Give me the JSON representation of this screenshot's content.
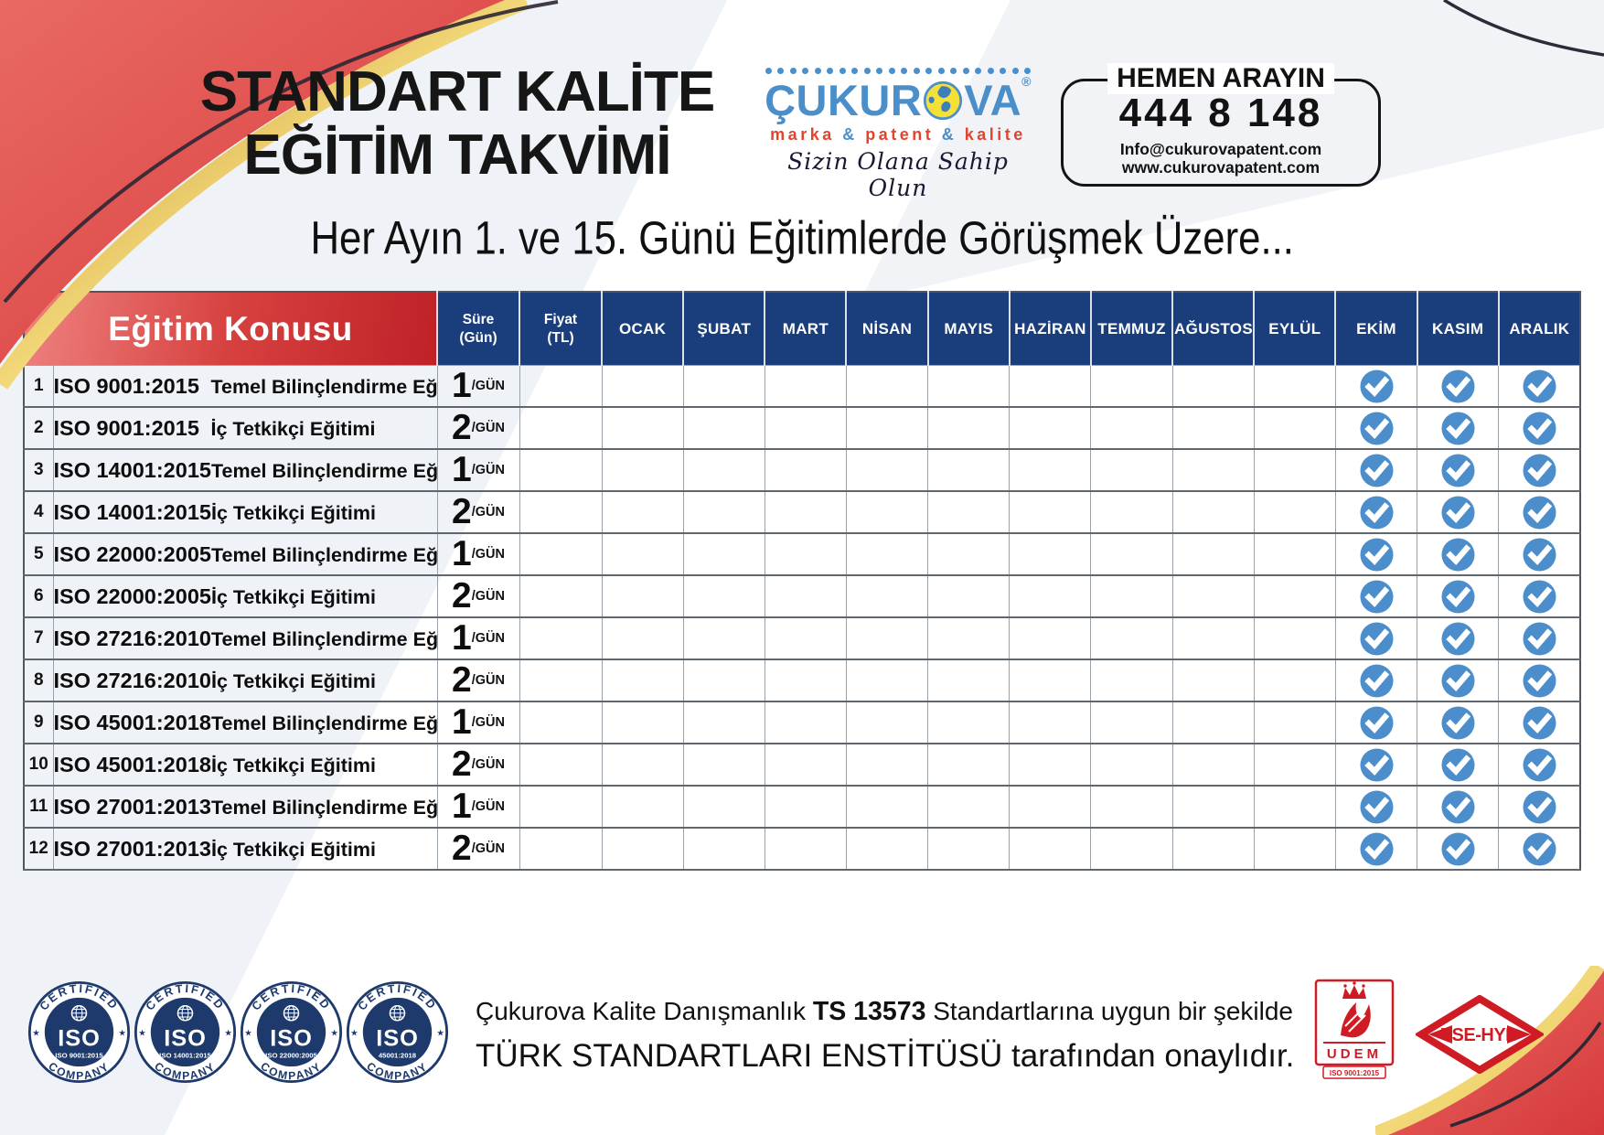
{
  "colors": {
    "accent_red": "#c5262c",
    "header_red_light": "#ee8280",
    "header_blue": "#1a3e7c",
    "check_blue": "#4b8ecb",
    "badge_navy": "#1e3a6d",
    "logo_blue": "#4a8fc9",
    "logo_red": "#e2442e",
    "globe_yellow": "#f5df39",
    "cert_red": "#cf1b24",
    "gold": "#d9a33b"
  },
  "header": {
    "title_line1": "STANDART KALİTE",
    "title_line2": "EĞİTİM TAKVİMİ",
    "logo": {
      "name_pre": "ÇUKUR",
      "name_post": "VA",
      "registered": "®",
      "tagline_parts": [
        "marka",
        "&",
        "patent",
        "&",
        "kalite"
      ],
      "script": "Sizin Olana Sahip Olun"
    },
    "contact": {
      "label": "HEMEN ARAYIN",
      "phone": "444 8 148",
      "email": "Info@cukurovapatent.com",
      "website": "www.cukurovapatent.com"
    },
    "subtitle": "Her Ayın 1. ve 15. Günü Eğitimlerde Görüşmek Üzere..."
  },
  "table": {
    "topic_header": "Eğitim Konusu",
    "sure_header": {
      "line1": "Süre",
      "line2": "(Gün)"
    },
    "fiyat_header": {
      "line1": "Fiyat",
      "line2": "(TL)"
    },
    "months": [
      "OCAK",
      "ŞUBAT",
      "MART",
      "NİSAN",
      "MAYIS",
      "HAZİRAN",
      "TEMMUZ",
      "AĞUSTOS",
      "EYLÜL",
      "EKİM",
      "KASIM",
      "ARALIK"
    ],
    "gun_suffix": "/GÜN",
    "rows": [
      {
        "no": "1",
        "standard": "ISO 9001:2015",
        "course": "Temel Bilinçlendirme Eğitimi",
        "days": "1",
        "price": "",
        "checked_months": [
          "EKİM",
          "KASIM",
          "ARALIK"
        ]
      },
      {
        "no": "2",
        "standard": "ISO 9001:2015",
        "course": "İç Tetkikçi Eğitimi",
        "days": "2",
        "price": "",
        "checked_months": [
          "EKİM",
          "KASIM",
          "ARALIK"
        ]
      },
      {
        "no": "3",
        "standard": "ISO 14001:2015",
        "course": "Temel Bilinçlendirme Eğitimi",
        "days": "1",
        "price": "",
        "checked_months": [
          "EKİM",
          "KASIM",
          "ARALIK"
        ]
      },
      {
        "no": "4",
        "standard": "ISO 14001:2015",
        "course": "İç Tetkikçi Eğitimi",
        "days": "2",
        "price": "",
        "checked_months": [
          "EKİM",
          "KASIM",
          "ARALIK"
        ]
      },
      {
        "no": "5",
        "standard": "ISO 22000:2005",
        "course": "Temel Bilinçlendirme Eğitimi",
        "days": "1",
        "price": "",
        "checked_months": [
          "EKİM",
          "KASIM",
          "ARALIK"
        ]
      },
      {
        "no": "6",
        "standard": "ISO 22000:2005",
        "course": "İç Tetkikçi Eğitimi",
        "days": "2",
        "price": "",
        "checked_months": [
          "EKİM",
          "KASIM",
          "ARALIK"
        ]
      },
      {
        "no": "7",
        "standard": "ISO 27216:2010",
        "course": "Temel Bilinçlendirme Eğitimi",
        "days": "1",
        "price": "",
        "checked_months": [
          "EKİM",
          "KASIM",
          "ARALIK"
        ]
      },
      {
        "no": "8",
        "standard": "ISO 27216:2010",
        "course": "İç Tetkikçi Eğitimi",
        "days": "2",
        "price": "",
        "checked_months": [
          "EKİM",
          "KASIM",
          "ARALIK"
        ]
      },
      {
        "no": "9",
        "standard": "ISO 45001:2018",
        "course": "Temel Bilinçlendirme Eğitimi",
        "days": "1",
        "price": "",
        "checked_months": [
          "EKİM",
          "KASIM",
          "ARALIK"
        ]
      },
      {
        "no": "10",
        "standard": "ISO 45001:2018",
        "course": "İç Tetkikçi Eğitimi",
        "days": "2",
        "price": "",
        "checked_months": [
          "EKİM",
          "KASIM",
          "ARALIK"
        ]
      },
      {
        "no": "11",
        "standard": "ISO 27001:2013",
        "course": "Temel Bilinçlendirme Eğitimi",
        "days": "1",
        "price": "",
        "checked_months": [
          "EKİM",
          "KASIM",
          "ARALIK"
        ]
      },
      {
        "no": "12",
        "standard": "ISO 27001:2013",
        "course": "İç Tetkikçi Eğitimi",
        "days": "2",
        "price": "",
        "checked_months": [
          "EKİM",
          "KASIM",
          "ARALIK"
        ]
      }
    ]
  },
  "footer": {
    "badges": [
      {
        "top": "CERTIFIED",
        "center": "ISO",
        "standard": "ISO 9001:2015",
        "bottom": "COMPANY"
      },
      {
        "top": "CERTIFIED",
        "center": "ISO",
        "standard": "ISO 14001:2015",
        "bottom": "COMPANY"
      },
      {
        "top": "CERTIFIED",
        "center": "ISO",
        "standard": "ISO 22000:2005",
        "bottom": "COMPANY"
      },
      {
        "top": "CERTIFIED",
        "center": "ISO",
        "standard": "45001:2018",
        "bottom": "COMPANY"
      }
    ],
    "approval": {
      "pre": "Çukurova Kalite Danışmanlık",
      "ts": "TS 13573",
      "post": "Standartlarına uygun bir şekilde",
      "line2_caps": "TÜRK STANDARTLARI ENSTİTÜSÜ",
      "line2_rest": "tarafından onaylıdır."
    },
    "udem": {
      "name": "UDEM",
      "standard": "ISO 9001:2015"
    },
    "tse": {
      "label": "TSE-HYB"
    }
  }
}
